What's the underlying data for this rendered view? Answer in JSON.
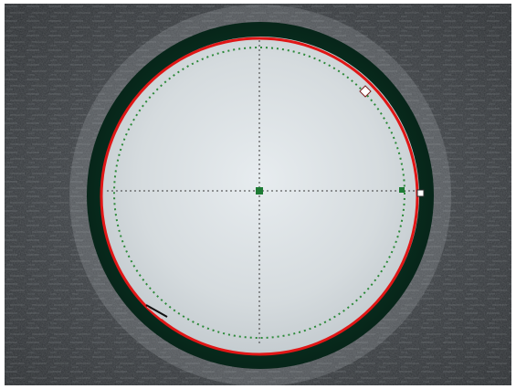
{
  "colors": {
    "background_dark": "#2f3235",
    "surface_mid": "#4b4f53",
    "surface_light": "#a9b0b4",
    "bore_fill": "#d7dde0",
    "outer_ring": "#0b3f2a",
    "fit_circle_red": "#e01616",
    "guide_green": "#2d8a3a",
    "crosshair": "#3a3a3a",
    "handle_white": "#ffffff"
  },
  "icons": {
    "crosshair_center": "square-marker-icon",
    "crosshair_right": "square-marker-icon",
    "edge_handle_top_right": "diamond-handle-icon",
    "edge_handle_right": "square-handle-icon",
    "edge_handle_bottom_left": "line-handle-icon"
  }
}
